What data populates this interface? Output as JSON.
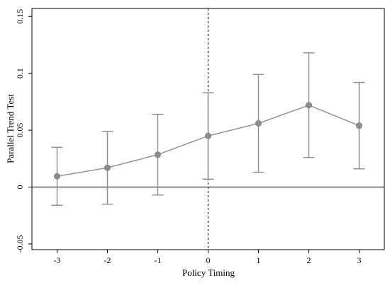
{
  "chart_data": {
    "type": "scatter",
    "xlabel": "Policy Timing",
    "ylabel": "Parallel Trend Test",
    "x_ticks": [
      "-3",
      "-2",
      "-1",
      "0",
      "1",
      "2",
      "3"
    ],
    "y_ticks": [
      "-0.05",
      "0",
      "0.05",
      "0.1",
      "0.15"
    ],
    "xlim": [
      -3.5,
      3.5
    ],
    "ylim": [
      -0.055,
      0.157
    ],
    "grid": false,
    "vline_x": 0,
    "hline_y": 0,
    "series": [
      {
        "x": [
          -3,
          -2,
          -1,
          0,
          1,
          2,
          3
        ],
        "y": [
          0.0095,
          0.017,
          0.0285,
          0.045,
          0.056,
          0.072,
          0.054
        ],
        "ci_low": [
          -0.016,
          -0.015,
          -0.007,
          0.007,
          0.013,
          0.026,
          0.016
        ],
        "ci_high": [
          0.035,
          0.049,
          0.064,
          0.083,
          0.099,
          0.118,
          0.092
        ]
      }
    ],
    "colors": {
      "series": "#8c8c8c",
      "axis": "#000000",
      "reference": "#333333"
    }
  }
}
